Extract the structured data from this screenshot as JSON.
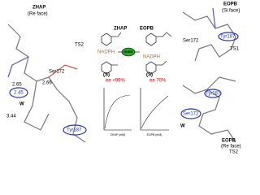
{
  "left_panel": {
    "title": "ZHAP",
    "face": "(Re face)",
    "state": "TS2",
    "labels": [
      "2.45",
      "W",
      "Ser172",
      "2.66",
      "2.65",
      "3.44",
      "Tyr187"
    ]
  },
  "scheme": {
    "substrate_left": "ZHAP",
    "substrate_right": "EOPB",
    "enzyme": "ShBR",
    "cofactor_left": "NADPH",
    "cofactor_right": "NADPH",
    "config_left": "(S)",
    "config_right": "(S)",
    "ee_left": "ee >99%",
    "ee_right": "ee 70%",
    "plot_x_left": "ZHAP (mM)",
    "plot_x_right": "EOPB (mM)"
  },
  "right_top": {
    "title": "EOPB",
    "face": "(Si face)",
    "state": "TS1",
    "labels": [
      "Ser172",
      "Tyr187"
    ]
  },
  "right_bottom": {
    "title": "EOPB",
    "face": "(Re face)",
    "state": "TS2",
    "labels": [
      "Ser172",
      "W",
      "Tyr187"
    ]
  }
}
